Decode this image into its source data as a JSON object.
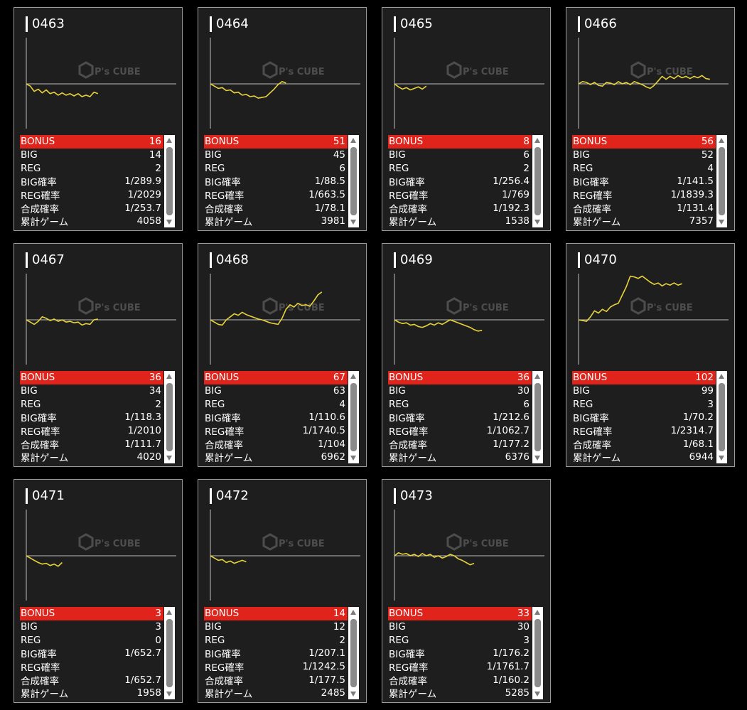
{
  "colors": {
    "background": "#000000",
    "card": "#1e1e1e",
    "card_border": "#9a9a9a",
    "line": "#e8d23a",
    "baseline": "#bdbdbd",
    "bonus_bg": "#e0241b",
    "text": "#ffffff"
  },
  "labels": {
    "bonus": "BONUS",
    "big": "BIG",
    "reg": "REG",
    "big_rate": "BIG確率",
    "reg_rate": "REG確率",
    "combined_rate": "合成確率",
    "total_games": "累計ゲーム"
  },
  "watermark": {
    "text": "P's CUBE"
  },
  "chart_data": [
    {
      "type": "line",
      "values": [
        0,
        -3,
        -10,
        -7,
        -12,
        -8,
        -13,
        -11,
        -15,
        -12,
        -15,
        -13,
        -16,
        -13,
        -17,
        -15,
        -17,
        -11,
        -13
      ],
      "xlabel": "",
      "ylabel": ""
    },
    {
      "type": "line",
      "values": [
        0,
        -3,
        -6,
        -5,
        -9,
        -8,
        -12,
        -11,
        -15,
        -14,
        -17,
        -16,
        -19,
        -18,
        -17,
        -12,
        -7,
        -1,
        3,
        1
      ],
      "xlabel": "",
      "ylabel": ""
    },
    {
      "type": "line",
      "values": [
        0,
        -4,
        -7,
        -5,
        -8,
        -6,
        -4,
        -7,
        -3
      ],
      "xlabel": "",
      "ylabel": ""
    },
    {
      "type": "line",
      "values": [
        0,
        3,
        2,
        -1,
        2,
        -2,
        -3,
        2,
        1,
        -1,
        3,
        0,
        2,
        -1,
        3,
        1,
        -1,
        -4,
        -6,
        -2,
        4,
        10,
        6,
        10,
        7,
        11,
        8,
        10,
        7,
        10,
        8,
        11,
        7,
        6
      ],
      "xlabel": "",
      "ylabel": ""
    },
    {
      "type": "line",
      "values": [
        0,
        -3,
        -6,
        -2,
        4,
        2,
        -1,
        1,
        -2,
        0,
        -3,
        -2,
        -4,
        -3,
        -7,
        -5,
        -6,
        0,
        1
      ],
      "xlabel": "",
      "ylabel": ""
    },
    {
      "type": "line",
      "values": [
        0,
        -3,
        -6,
        -7,
        0,
        4,
        8,
        6,
        10,
        7,
        5,
        3,
        1,
        0,
        -2,
        -4,
        -5,
        -6,
        2,
        14,
        20,
        17,
        22,
        19,
        20,
        18,
        25,
        33,
        37
      ],
      "xlabel": "",
      "ylabel": ""
    },
    {
      "type": "line",
      "values": [
        0,
        -3,
        -5,
        -4,
        -7,
        -6,
        -9,
        -10,
        -8,
        -5,
        -7,
        -4,
        -6,
        -3,
        0,
        -2,
        -4,
        -6,
        -8,
        -10,
        -13,
        -15,
        -14
      ],
      "xlabel": "",
      "ylabel": ""
    },
    {
      "type": "line",
      "values": [
        0,
        -1,
        -2,
        4,
        12,
        9,
        14,
        11,
        17,
        20,
        22,
        33,
        44,
        58,
        57,
        55,
        58,
        54,
        50,
        47,
        49,
        45,
        48,
        46,
        49,
        46,
        48
      ],
      "xlabel": "",
      "ylabel": ""
    },
    {
      "type": "line",
      "values": [
        0,
        -3,
        -6,
        -9,
        -11,
        -10,
        -13,
        -11,
        -14,
        -9
      ],
      "xlabel": "",
      "ylabel": ""
    },
    {
      "type": "line",
      "values": [
        0,
        -3,
        -6,
        -5,
        -9,
        -7,
        -10,
        -8,
        -6,
        -8
      ],
      "xlabel": "",
      "ylabel": ""
    },
    {
      "type": "line",
      "values": [
        0,
        4,
        2,
        3,
        0,
        2,
        -1,
        3,
        0,
        2,
        -2,
        0,
        -3,
        -1,
        2,
        0,
        -4,
        -6,
        -9,
        -12,
        -10
      ],
      "xlabel": "",
      "ylabel": ""
    }
  ],
  "machines": [
    {
      "id": "0463",
      "bonus": "16",
      "big": "14",
      "reg": "2",
      "big_rate": "1/289.9",
      "reg_rate": "1/2029",
      "combined_rate": "1/253.7",
      "total_games": "4058"
    },
    {
      "id": "0464",
      "bonus": "51",
      "big": "45",
      "reg": "6",
      "big_rate": "1/88.5",
      "reg_rate": "1/663.5",
      "combined_rate": "1/78.1",
      "total_games": "3981"
    },
    {
      "id": "0465",
      "bonus": "8",
      "big": "6",
      "reg": "2",
      "big_rate": "1/256.4",
      "reg_rate": "1/769",
      "combined_rate": "1/192.3",
      "total_games": "1538"
    },
    {
      "id": "0466",
      "bonus": "56",
      "big": "52",
      "reg": "4",
      "big_rate": "1/141.5",
      "reg_rate": "1/1839.3",
      "combined_rate": "1/131.4",
      "total_games": "7357"
    },
    {
      "id": "0467",
      "bonus": "36",
      "big": "34",
      "reg": "2",
      "big_rate": "1/118.3",
      "reg_rate": "1/2010",
      "combined_rate": "1/111.7",
      "total_games": "4020"
    },
    {
      "id": "0468",
      "bonus": "67",
      "big": "63",
      "reg": "4",
      "big_rate": "1/110.6",
      "reg_rate": "1/1740.5",
      "combined_rate": "1/104",
      "total_games": "6962"
    },
    {
      "id": "0469",
      "bonus": "36",
      "big": "30",
      "reg": "6",
      "big_rate": "1/212.6",
      "reg_rate": "1/1062.7",
      "combined_rate": "1/177.2",
      "total_games": "6376"
    },
    {
      "id": "0470",
      "bonus": "102",
      "big": "99",
      "reg": "3",
      "big_rate": "1/70.2",
      "reg_rate": "1/2314.7",
      "combined_rate": "1/68.1",
      "total_games": "6944"
    },
    {
      "id": "0471",
      "bonus": "3",
      "big": "3",
      "reg": "0",
      "big_rate": "1/652.7",
      "reg_rate": "",
      "combined_rate": "1/652.7",
      "total_games": "1958"
    },
    {
      "id": "0472",
      "bonus": "14",
      "big": "12",
      "reg": "2",
      "big_rate": "1/207.1",
      "reg_rate": "1/1242.5",
      "combined_rate": "1/177.5",
      "total_games": "2485"
    },
    {
      "id": "0473",
      "bonus": "33",
      "big": "30",
      "reg": "3",
      "big_rate": "1/176.2",
      "reg_rate": "1/1761.7",
      "combined_rate": "1/160.2",
      "total_games": "5285"
    }
  ]
}
